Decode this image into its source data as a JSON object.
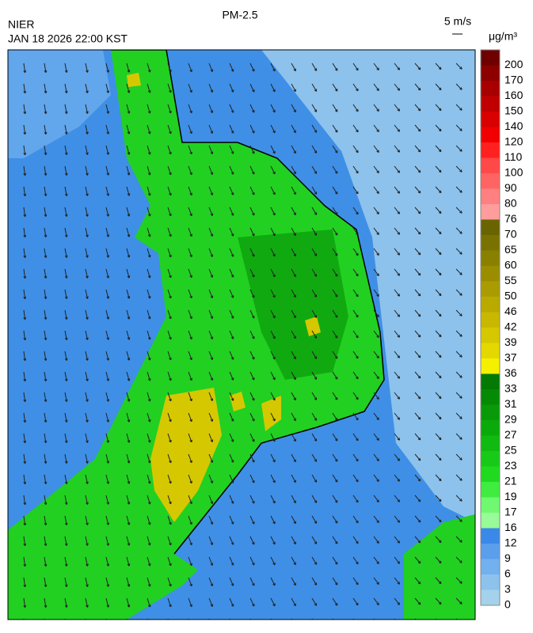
{
  "header": {
    "title": "PM-2.5",
    "agency": "NIER",
    "timestamp": "JAN 18 2026 22:00 KST",
    "wind_scale": "5 m/s",
    "unit": "μg/m³"
  },
  "colorbar": {
    "labels": [
      200,
      170,
      160,
      150,
      140,
      120,
      110,
      100,
      90,
      80,
      76,
      70,
      65,
      60,
      55,
      50,
      46,
      42,
      39,
      37,
      36,
      33,
      31,
      29,
      27,
      25,
      23,
      21,
      19,
      17,
      16,
      12,
      9,
      6,
      3,
      0
    ],
    "colors": [
      "#6e0000",
      "#8c0000",
      "#a80000",
      "#c00000",
      "#d80000",
      "#f00000",
      "#ff2020",
      "#ff4848",
      "#ff6464",
      "#ff8080",
      "#ff9c9c",
      "#6a6400",
      "#7a7200",
      "#8a8000",
      "#9a8e00",
      "#aa9c00",
      "#baaa00",
      "#c8b800",
      "#d6c800",
      "#e4d800",
      "#f4f000",
      "#037a03",
      "#058a05",
      "#089a08",
      "#0aaa0a",
      "#10ba10",
      "#18ca18",
      "#20da20",
      "#40ec40",
      "#70f870",
      "#98fa98",
      "#3a88e8",
      "#5a9eec",
      "#72b0ee",
      "#8cc2ec",
      "#a4d2ec"
    ]
  }
}
